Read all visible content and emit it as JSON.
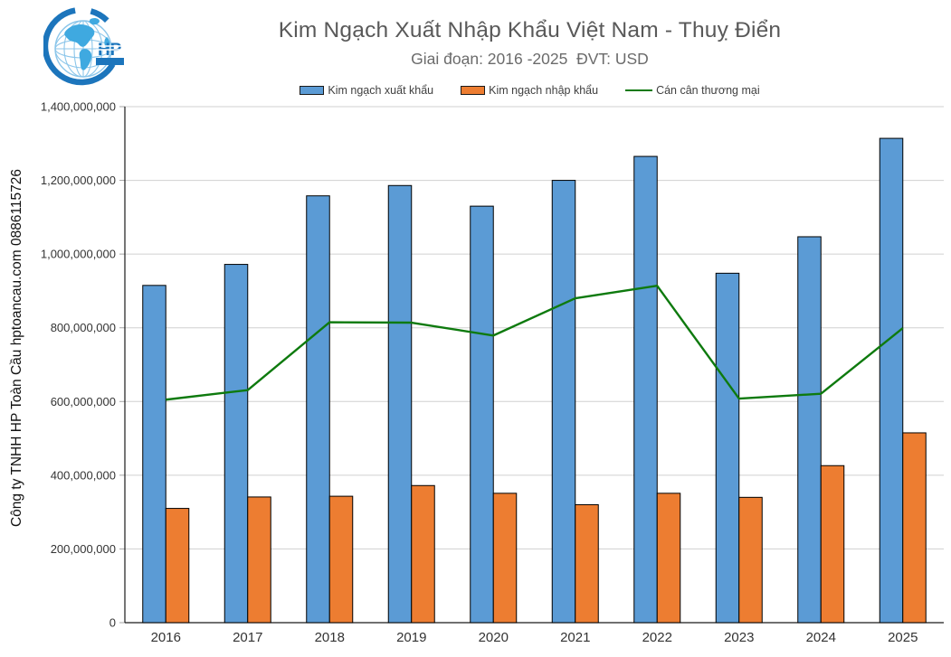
{
  "page": {
    "title": "Kim Ngạch Xuất Nhập Khẩu Việt Nam - Thuỵ Điển",
    "subtitle": "Giai đoạn: 2016 -2025  ĐVT: USD",
    "watermark": "Công ty TNHH HP Toàn Cầu hptoancau.com 0886115726",
    "logo_text": "HP"
  },
  "legend": [
    {
      "label": "Kim ngạch xuất khẩu",
      "type": "bar",
      "color": "#5B9BD5"
    },
    {
      "label": "Kim ngạch nhập khẩu",
      "type": "bar",
      "color": "#ED7D31"
    },
    {
      "label": "Cán cân thương mại",
      "type": "line",
      "color": "#0E7A0E"
    }
  ],
  "chart_data": {
    "type": "bar",
    "title": "Kim Ngạch Xuất Nhập Khẩu Việt Nam - Thuỵ Điển",
    "subtitle": "Giai đoạn: 2016 -2025  ĐVT: USD",
    "xlabel": "",
    "ylabel": "",
    "unit": "USD",
    "categories": [
      "2016",
      "2017",
      "2018",
      "2019",
      "2020",
      "2021",
      "2022",
      "2023",
      "2024",
      "2025"
    ],
    "series": [
      {
        "name": "Kim ngạch xuất khẩu",
        "type": "bar",
        "color": "#5B9BD5",
        "values": [
          915000000,
          972000000,
          1158000000,
          1186000000,
          1130000000,
          1200000000,
          1265000000,
          948000000,
          1047000000,
          1314000000
        ]
      },
      {
        "name": "Kim ngạch nhập khẩu",
        "type": "bar",
        "color": "#ED7D31",
        "values": [
          310000000,
          341000000,
          343000000,
          372000000,
          351000000,
          320000000,
          351000000,
          340000000,
          426000000,
          515000000
        ]
      },
      {
        "name": "Cán cân thương mại",
        "type": "line",
        "color": "#0E7A0E",
        "values": [
          605000000,
          631000000,
          815000000,
          814000000,
          779000000,
          880000000,
          914000000,
          608000000,
          621000000,
          799000000
        ]
      }
    ],
    "ylim": [
      0,
      1400000000
    ],
    "ytick_step": 200000000,
    "ytick_labels": [
      "0",
      "200,000,000",
      "400,000,000",
      "600,000,000",
      "800,000,000",
      "1,000,000,000",
      "1,200,000,000",
      "1,400,000,000"
    ],
    "grid": "horizontal",
    "legend_position": "top"
  },
  "style": {
    "gridline_color": "#D0D0D0",
    "tick_color": "#A6A6A6",
    "axis_color": "#1a1a1a",
    "bar_stroke": "#000000",
    "axis_label_color": "#333333",
    "logo_blue": "#1C75BC",
    "logo_light_blue": "#8CC6EA",
    "logo_land_blue": "#3FA9E0"
  }
}
